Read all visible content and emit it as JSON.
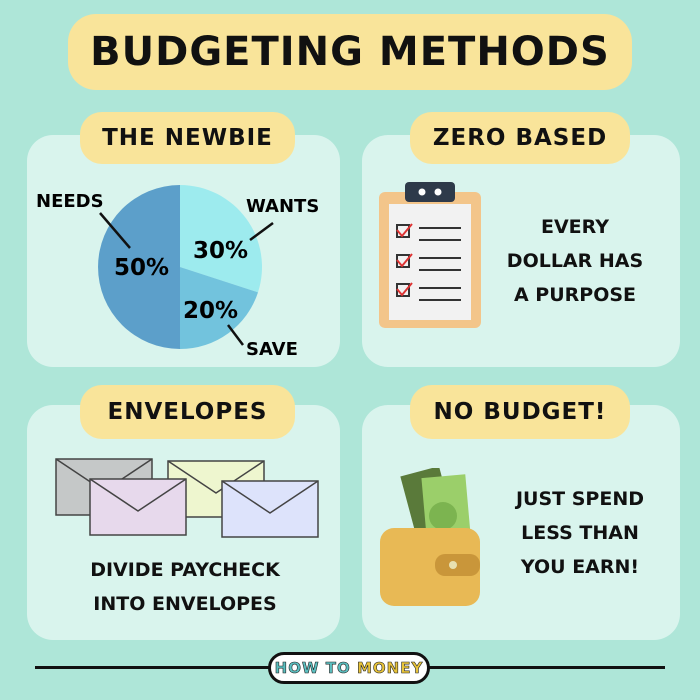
{
  "title": "BUDGETING METHODS",
  "newbie": {
    "heading": "THE NEWBIE",
    "chart_data": {
      "type": "pie",
      "slices": [
        {
          "label": "WANTS",
          "value": 30,
          "text": "30%",
          "color": "#9debee"
        },
        {
          "label": "SAVE",
          "value": 20,
          "text": "20%",
          "color": "#72c3dd"
        },
        {
          "label": "NEEDS",
          "value": 50,
          "text": "50%",
          "color": "#5c9fca"
        }
      ]
    }
  },
  "zero": {
    "heading": "ZERO BASED",
    "lines": [
      "EVERY",
      "DOLLAR HAS",
      "A PURPOSE"
    ]
  },
  "envelopes": {
    "heading": "ENVELOPES",
    "lines": [
      "DIVIDE PAYCHECK",
      "INTO ENVELOPES"
    ]
  },
  "nobudget": {
    "heading": "NO BUDGET!",
    "lines": [
      "JUST SPEND",
      "LESS THAN",
      "YOU EARN!"
    ]
  },
  "logo": {
    "part1": "HOW TO",
    "part2": "MONEY"
  },
  "colors": {
    "background": "#aee6d8",
    "pill": "#f9e49a",
    "logo_teal": "#5bbfc0",
    "logo_yellow": "#e8c43a"
  }
}
